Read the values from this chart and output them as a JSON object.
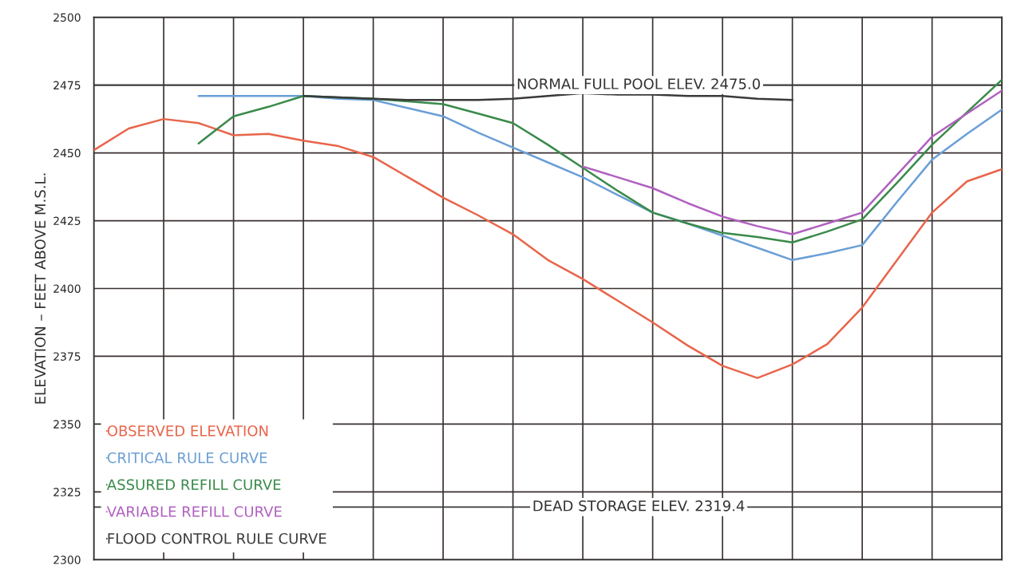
{
  "chart_data": {
    "type": "line",
    "ylabel": "ELEVATION – FEET ABOVE M.S.L.",
    "categories": [
      null,
      null,
      null,
      null,
      null,
      null,
      null,
      null,
      null,
      null,
      null,
      null,
      null,
      null,
      null,
      null,
      null,
      null,
      null,
      null,
      null,
      null,
      null,
      null,
      null,
      null,
      null
    ],
    "ylim": [
      2300,
      2500
    ],
    "yticks": [
      2300,
      2325,
      2350,
      2375,
      2400,
      2425,
      2450,
      2475,
      2500
    ],
    "tick_labels": "y",
    "grid": true,
    "legend": "bottom left",
    "marker": "none",
    "line_style": "solid",
    "series": [
      {
        "name": "OBSERVED ELEVATION",
        "color": "#e8654a",
        "values": [
          2451,
          2459,
          2462.5,
          2461,
          2456.5,
          2457,
          2454.5,
          2452.5,
          2448.5,
          2441,
          2433.5,
          2427,
          2420,
          2410.5,
          2403.5,
          2395.5,
          2387.5,
          2379,
          2371.5,
          2367,
          2372,
          2379.5,
          2393,
          2410.5,
          2428,
          2439.5,
          2444
        ]
      },
      {
        "name": "CRITICAL RULE CURVE",
        "color": "#6a9fd6",
        "values": [
          null,
          null,
          null,
          2471,
          2471,
          2471,
          2471,
          2470,
          2469.5,
          2466.5,
          2463.5,
          2457.5,
          2452,
          2446.5,
          2441,
          2434.5,
          2428,
          2424,
          2419.5,
          2415,
          2410.5,
          2413,
          2416,
          2432,
          2447.5,
          2457,
          2466
        ]
      },
      {
        "name": "ASSURED REFILL CURVE",
        "color": "#3a8a4a",
        "values": [
          null,
          null,
          null,
          2453.5,
          2463.5,
          2467,
          2471,
          2470.5,
          2470,
          2469,
          2468,
          2464.5,
          2461,
          2453,
          2444.5,
          2436,
          2428,
          2424,
          2420.5,
          2419,
          2417,
          2421,
          2425.5,
          2439,
          2453,
          2465,
          2477
        ]
      },
      {
        "name": "VARIABLE REFILL CURVE",
        "color": "#b060c0",
        "values": [
          null,
          null,
          null,
          null,
          null,
          null,
          null,
          null,
          null,
          null,
          null,
          null,
          null,
          null,
          2445,
          2441,
          2437,
          2431.5,
          2426.5,
          2423,
          2420,
          2424,
          2428,
          2442,
          2456,
          2464.5,
          2473
        ]
      },
      {
        "name": "FLOOD CONTROL RULE CURVE",
        "color": "#3a3a3a",
        "values": [
          null,
          null,
          null,
          null,
          null,
          null,
          2471,
          2470.5,
          2470,
          2469.5,
          2469.5,
          2469.5,
          2470,
          2471,
          2472,
          2471.5,
          2471.5,
          2471,
          2471,
          2470,
          2469.5,
          null,
          null,
          null,
          null,
          null,
          null
        ]
      }
    ],
    "ref_lines": [
      {
        "axis": "y",
        "value": 2475.0,
        "label": "NORMAL FULL POOL ELEV. 2475.0",
        "color": "#3a3a3a"
      },
      {
        "axis": "y",
        "value": 2319.4,
        "label": "DEAD STORAGE ELEV. 2319.4",
        "color": "#3a3a3a"
      }
    ]
  }
}
